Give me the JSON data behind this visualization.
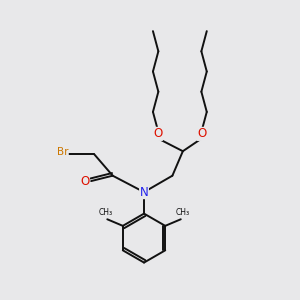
{
  "bg_color": "#e8e8ea",
  "bond_color": "#111111",
  "bond_width": 1.4,
  "atom_colors": {
    "Br": "#cc7700",
    "O": "#dd1100",
    "N": "#2222ee",
    "default": "#111111"
  },
  "figsize": [
    3.0,
    3.0
  ],
  "dpi": 100
}
